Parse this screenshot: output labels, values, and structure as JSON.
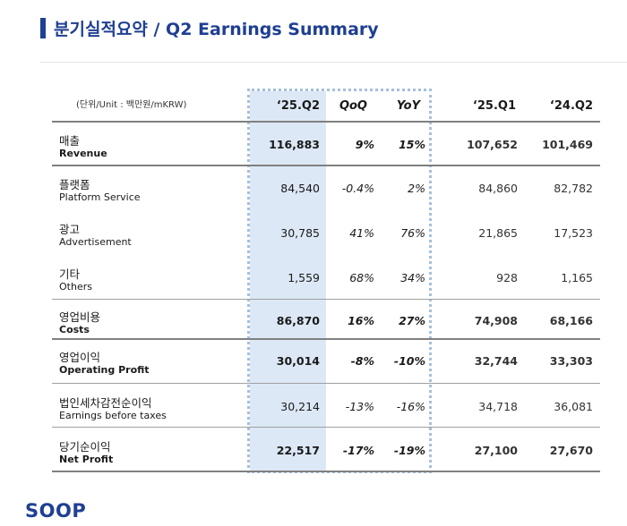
{
  "title": "분기실적요약 / Q2 Earnings Summary",
  "unit_label": "(단위/Unit : 백만원/mKRW)",
  "columns": [
    "‘25.Q2",
    "QoQ",
    "YoY",
    "‘25.Q1",
    "‘24.Q2"
  ],
  "rows": [
    {
      "ko": "매출",
      "en": "Revenue",
      "values": [
        "116,883",
        "9%",
        "15%",
        "107,652",
        "101,469"
      ]
    },
    {
      "ko": "플랫폼",
      "en": "Platform Service",
      "values": [
        "84,540",
        "-0.4%",
        "2%",
        "84,860",
        "82,782"
      ]
    },
    {
      "ko": "광고",
      "en": "Advertisement",
      "values": [
        "30,785",
        "41%",
        "76%",
        "21,865",
        "17,523"
      ]
    },
    {
      "ko": "기타",
      "en": "Others",
      "values": [
        "1,559",
        "68%",
        "34%",
        "928",
        "1,165"
      ]
    },
    {
      "ko": "영업비용",
      "en": "Costs",
      "values": [
        "86,870",
        "16%",
        "27%",
        "74,908",
        "68,166"
      ]
    },
    {
      "ko": "영업이익",
      "en": "Operating Profit",
      "values": [
        "30,014",
        "-8%",
        "-10%",
        "32,744",
        "33,303"
      ]
    },
    {
      "ko": "법인세차감전순이익",
      "en": "Earnings before taxes",
      "values": [
        "30,214",
        "-13%",
        "-16%",
        "34,718",
        "36,081"
      ]
    },
    {
      "ko": "당기순이익",
      "en": "Net Profit",
      "values": [
        "22,517",
        "-17%",
        "-19%",
        "27,100",
        "27,670"
      ]
    }
  ],
  "logo_text": "SOOP",
  "colors": {
    "brand": "#1f3f93",
    "highlight": "#dce8f6",
    "highlight_border": "#a6bfdc"
  }
}
